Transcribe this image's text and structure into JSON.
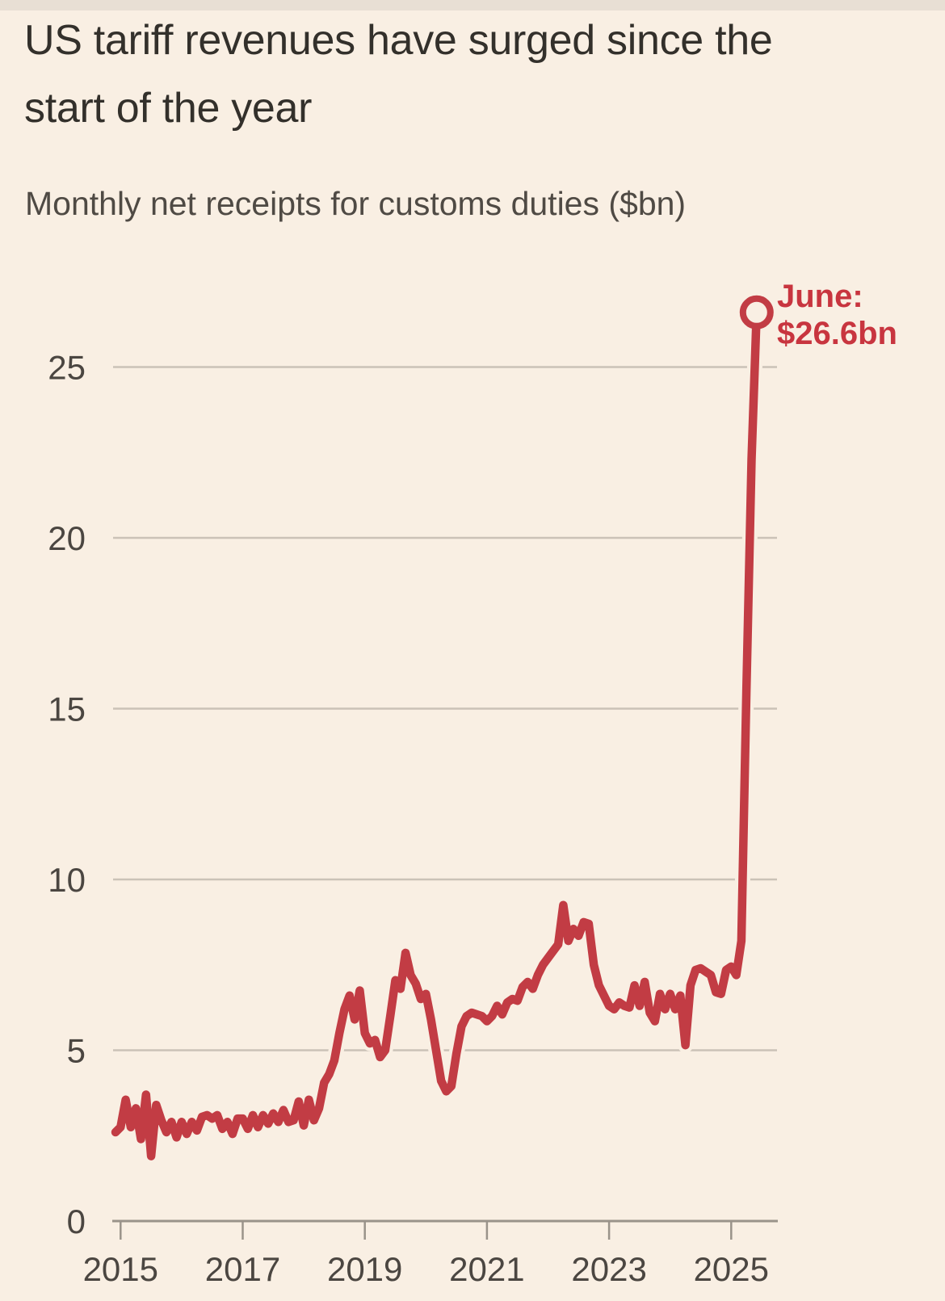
{
  "colors": {
    "background": "#f9efe3",
    "top_edge": "#e8dfd4",
    "title": "#33302b",
    "subtitle": "#4f4a44",
    "tick_label": "#4b4641",
    "grid": "#cbc2b7",
    "axis": "#9a938a",
    "line": "#c23c44",
    "annotation": "#c8353f"
  },
  "header": {
    "title_line1": "US tariff revenues have surged since the",
    "title_line2": "start of the year",
    "subtitle": "Monthly net receipts for customs duties ($bn)"
  },
  "annotation": {
    "line1": "June:",
    "line2": "$26.6bn"
  },
  "chart_data": {
    "type": "line",
    "title": "US tariff revenues have surged since the start of the year",
    "subtitle": "Monthly net receipts for customs duties ($bn)",
    "unit": "$bn",
    "frequency": "monthly",
    "start": "2014-12",
    "end": "2025-06",
    "ylim": [
      0,
      27.6
    ],
    "grid": "horizontal",
    "legend": "none",
    "y_ticks": [
      0,
      5,
      10,
      15,
      20,
      25
    ],
    "x_tick_labels": [
      "2015",
      "2017",
      "2019",
      "2021",
      "2023",
      "2025"
    ],
    "series_name": "Monthly net receipts for customs duties",
    "values": [
      2.6,
      2.75,
      3.55,
      2.75,
      3.3,
      2.4,
      3.7,
      1.9,
      3.4,
      2.95,
      2.6,
      2.9,
      2.45,
      2.9,
      2.55,
      2.9,
      2.65,
      3.05,
      3.1,
      3.0,
      3.1,
      2.7,
      2.9,
      2.55,
      3.0,
      3.0,
      2.7,
      3.1,
      2.75,
      3.1,
      2.85,
      3.15,
      2.9,
      3.25,
      2.9,
      2.95,
      3.5,
      2.8,
      3.55,
      2.95,
      3.3,
      4.05,
      4.3,
      4.7,
      5.5,
      6.2,
      6.6,
      5.9,
      6.75,
      5.5,
      5.2,
      5.3,
      4.8,
      5.0,
      6.0,
      7.05,
      6.8,
      7.85,
      7.2,
      6.95,
      6.5,
      6.65,
      5.9,
      5.0,
      4.1,
      3.8,
      3.95,
      4.9,
      5.7,
      6.0,
      6.1,
      6.05,
      6.0,
      5.85,
      6.0,
      6.3,
      6.05,
      6.4,
      6.5,
      6.45,
      6.85,
      7.0,
      6.8,
      7.2,
      7.5,
      7.7,
      7.9,
      8.1,
      9.25,
      8.2,
      8.55,
      8.35,
      8.75,
      8.7,
      7.5,
      6.9,
      6.6,
      6.3,
      6.2,
      6.4,
      6.3,
      6.25,
      6.9,
      6.3,
      7.0,
      6.1,
      5.85,
      6.65,
      6.2,
      6.65,
      6.2,
      6.6,
      5.15,
      6.9,
      7.35,
      7.4,
      7.3,
      7.2,
      6.7,
      6.65,
      7.35,
      7.45,
      7.2,
      8.2,
      15.6,
      22.3,
      26.6
    ],
    "highlight": {
      "month": "2025-06",
      "value": 26.6,
      "label": "June: $26.6bn",
      "marker": "open-circle"
    }
  }
}
